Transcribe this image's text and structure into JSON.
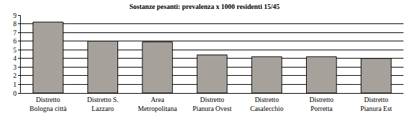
{
  "chart_data": {
    "type": "bar",
    "title": "Sostanze pesanti: prevalenza x 1000 residenti 15/45",
    "categories": [
      "Distretto\nBologna città",
      "Distretto S.\nLazzaro",
      "Area\nMetropolitana",
      "Distretto\nPianura Ovest",
      "Distretto\nCasalecchio",
      "Distretto\nPorretta",
      "Distretto\nPianura Est"
    ],
    "values": [
      8.2,
      6.0,
      5.9,
      4.4,
      4.2,
      4.2,
      4.0
    ],
    "color": "#a6a29b",
    "ylim": [
      0,
      9
    ],
    "yticks": [
      0,
      1,
      2,
      3,
      4,
      5,
      6,
      7,
      8,
      9
    ],
    "grid": true
  }
}
